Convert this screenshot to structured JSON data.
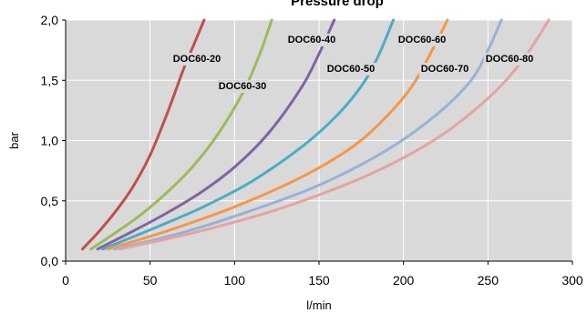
{
  "chart_data": {
    "type": "line",
    "title": "Pressure drop",
    "xlabel": "l/min",
    "ylabel": "bar",
    "xlim": [
      0,
      300
    ],
    "ylim": [
      0,
      2.0
    ],
    "x_ticks": [
      "0",
      "50",
      "100",
      "150",
      "200",
      "250",
      "300"
    ],
    "y_ticks": [
      "0,0",
      "0,5",
      "1,0",
      "1,5",
      "2,0"
    ],
    "grid": true,
    "legend": "inline labels",
    "plot_background": "#d9d9d9",
    "series": [
      {
        "name": "DOC60-20",
        "color": "#c0504d",
        "x": [
          10,
          20,
          30,
          40,
          50,
          60,
          70,
          76,
          82
        ],
        "y": [
          0.1,
          0.25,
          0.42,
          0.62,
          0.88,
          1.22,
          1.6,
          1.8,
          2.0
        ]
      },
      {
        "name": "DOC60-30",
        "color": "#9bbb59",
        "x": [
          15,
          30,
          45,
          60,
          75,
          90,
          105,
          115,
          122
        ],
        "y": [
          0.1,
          0.24,
          0.39,
          0.57,
          0.78,
          1.05,
          1.4,
          1.72,
          2.0
        ]
      },
      {
        "name": "DOC60-40",
        "color": "#8064a2",
        "x": [
          19,
          40,
          60,
          80,
          100,
          120,
          140,
          150,
          159
        ],
        "y": [
          0.1,
          0.25,
          0.4,
          0.57,
          0.78,
          1.06,
          1.45,
          1.72,
          2.0
        ]
      },
      {
        "name": "DOC60-50",
        "color": "#4bacc6",
        "x": [
          22,
          50,
          80,
          110,
          140,
          160,
          175,
          185,
          194
        ],
        "y": [
          0.1,
          0.26,
          0.44,
          0.66,
          0.95,
          1.2,
          1.45,
          1.7,
          2.0
        ]
      },
      {
        "name": "DOC60-60",
        "color": "#f79646",
        "x": [
          25,
          60,
          100,
          140,
          170,
          190,
          205,
          217,
          226
        ],
        "y": [
          0.1,
          0.25,
          0.45,
          0.7,
          0.95,
          1.2,
          1.45,
          1.75,
          2.0
        ]
      },
      {
        "name": "DOC60-70",
        "color": "#95b3d7",
        "x": [
          29,
          70,
          110,
          150,
          190,
          220,
          240,
          250,
          258
        ],
        "y": [
          0.1,
          0.24,
          0.42,
          0.63,
          0.92,
          1.22,
          1.5,
          1.75,
          2.0
        ]
      },
      {
        "name": "DOC60-80",
        "color": "#e6a3a1",
        "x": [
          32,
          80,
          130,
          180,
          220,
          250,
          268,
          278,
          286
        ],
        "y": [
          0.1,
          0.25,
          0.45,
          0.72,
          1.02,
          1.35,
          1.62,
          1.82,
          2.0
        ]
      }
    ]
  }
}
